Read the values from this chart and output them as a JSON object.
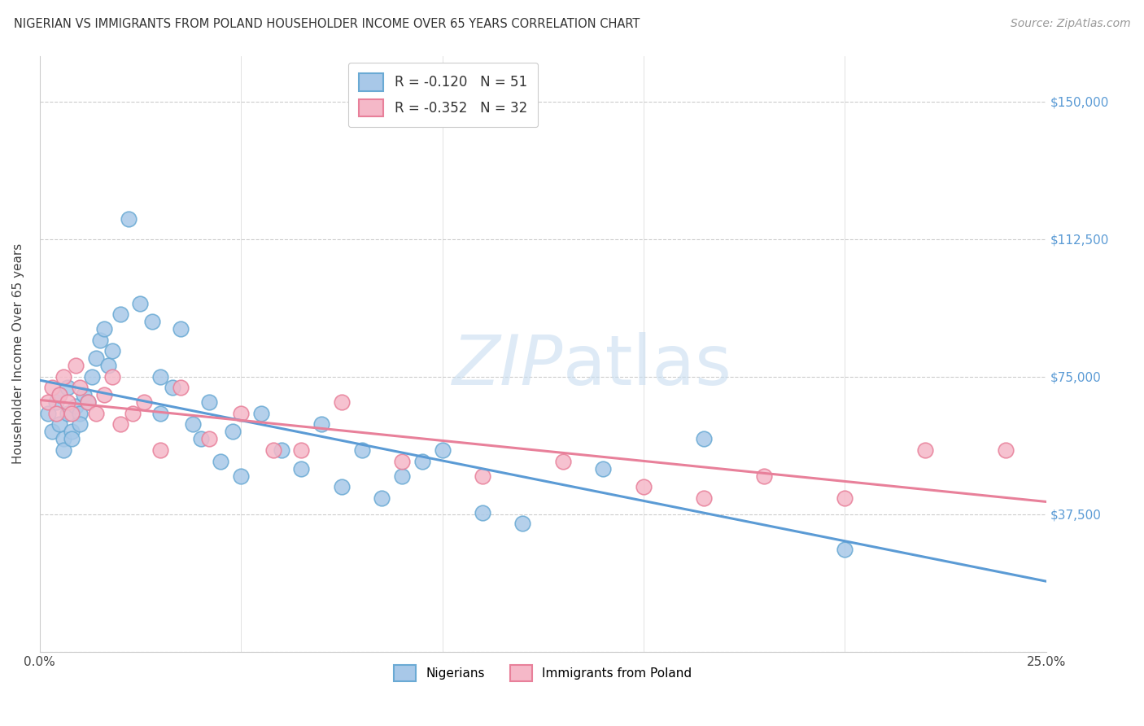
{
  "title": "NIGERIAN VS IMMIGRANTS FROM POLAND HOUSEHOLDER INCOME OVER 65 YEARS CORRELATION CHART",
  "source": "Source: ZipAtlas.com",
  "ylabel": "Householder Income Over 65 years",
  "xlim": [
    0.0,
    0.25
  ],
  "ylim": [
    0,
    162500
  ],
  "yticks": [
    0,
    37500,
    75000,
    112500,
    150000
  ],
  "ytick_labels": [
    "",
    "$37,500",
    "$75,000",
    "$112,500",
    "$150,000"
  ],
  "background_color": "#ffffff",
  "nigerian_color": "#a8c8e8",
  "nigerian_edge_color": "#6aaad4",
  "poland_color": "#f5b8c8",
  "poland_edge_color": "#e8809a",
  "nigerian_line_color": "#5b9bd5",
  "poland_line_color": "#e8809a",
  "legend_bottom": [
    "Nigerians",
    "Immigrants from Poland"
  ],
  "nigerian_R": -0.12,
  "nigerian_N": 51,
  "poland_R": -0.352,
  "poland_N": 32,
  "nigerian_x": [
    0.002,
    0.003,
    0.004,
    0.005,
    0.005,
    0.006,
    0.006,
    0.007,
    0.007,
    0.008,
    0.008,
    0.009,
    0.01,
    0.01,
    0.011,
    0.012,
    0.013,
    0.014,
    0.015,
    0.016,
    0.017,
    0.018,
    0.02,
    0.022,
    0.025,
    0.028,
    0.03,
    0.03,
    0.033,
    0.035,
    0.038,
    0.04,
    0.042,
    0.045,
    0.048,
    0.05,
    0.055,
    0.06,
    0.065,
    0.07,
    0.075,
    0.08,
    0.085,
    0.09,
    0.095,
    0.1,
    0.11,
    0.12,
    0.14,
    0.165,
    0.2
  ],
  "nigerian_y": [
    65000,
    60000,
    68000,
    70000,
    62000,
    58000,
    55000,
    65000,
    72000,
    60000,
    58000,
    67000,
    65000,
    62000,
    70000,
    68000,
    75000,
    80000,
    85000,
    88000,
    78000,
    82000,
    92000,
    118000,
    95000,
    90000,
    75000,
    65000,
    72000,
    88000,
    62000,
    58000,
    68000,
    52000,
    60000,
    48000,
    65000,
    55000,
    50000,
    62000,
    45000,
    55000,
    42000,
    48000,
    52000,
    55000,
    38000,
    35000,
    50000,
    58000,
    28000
  ],
  "poland_x": [
    0.002,
    0.003,
    0.004,
    0.005,
    0.006,
    0.007,
    0.008,
    0.009,
    0.01,
    0.012,
    0.014,
    0.016,
    0.018,
    0.02,
    0.023,
    0.026,
    0.03,
    0.035,
    0.042,
    0.05,
    0.058,
    0.065,
    0.075,
    0.09,
    0.11,
    0.13,
    0.15,
    0.165,
    0.18,
    0.2,
    0.22,
    0.24
  ],
  "poland_y": [
    68000,
    72000,
    65000,
    70000,
    75000,
    68000,
    65000,
    78000,
    72000,
    68000,
    65000,
    70000,
    75000,
    62000,
    65000,
    68000,
    55000,
    72000,
    58000,
    65000,
    55000,
    55000,
    68000,
    52000,
    48000,
    52000,
    45000,
    42000,
    48000,
    42000,
    55000,
    55000
  ]
}
